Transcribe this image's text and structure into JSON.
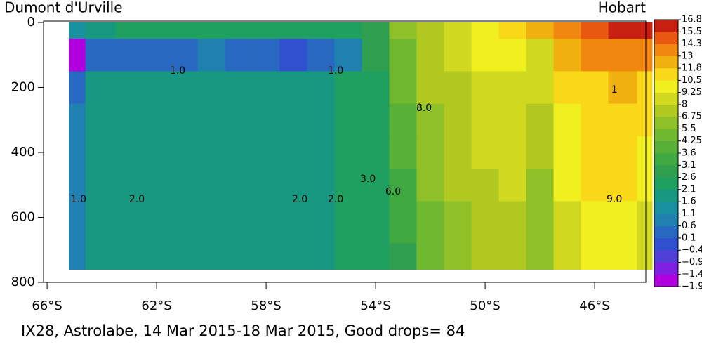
{
  "chart_data": {
    "type": "heatmap",
    "title": "IX28, Astrolabe, 14 Mar 2015-18 Mar 2015, Good drops= 84",
    "left_label": "Dumont d'Urville",
    "right_label": "Hobart",
    "x": [
      -65.2,
      -64,
      -63,
      -62,
      -61,
      -60,
      -59,
      -58,
      -57,
      -56,
      -55,
      -54,
      -53,
      -52,
      -51,
      -50,
      -49,
      -48,
      -47,
      -46,
      -45,
      -43.9
    ],
    "y": [
      0,
      100,
      200,
      300,
      400,
      500,
      600,
      760
    ],
    "z": [
      [
        1.5,
        -1.6,
        0.2,
        0.8,
        0.9,
        1.0,
        1.0,
        1.0
      ],
      [
        2.0,
        0.4,
        1.6,
        1.8,
        1.8,
        1.8,
        1.7,
        1.7
      ],
      [
        2.2,
        0.5,
        1.8,
        1.9,
        1.9,
        1.9,
        1.9,
        1.9
      ],
      [
        2.3,
        0.3,
        1.9,
        2.0,
        2.0,
        2.0,
        2.0,
        2.0
      ],
      [
        2.3,
        0.2,
        1.8,
        1.9,
        1.9,
        1.9,
        1.9,
        1.9
      ],
      [
        2.4,
        0.6,
        1.9,
        1.9,
        1.9,
        1.9,
        1.9,
        1.9
      ],
      [
        2.4,
        0.2,
        1.9,
        1.9,
        1.9,
        1.9,
        1.9,
        1.9
      ],
      [
        2.3,
        0.3,
        1.9,
        1.9,
        1.9,
        1.9,
        1.9,
        1.9
      ],
      [
        2.3,
        0.0,
        2.0,
        2.0,
        2.0,
        2.0,
        2.0,
        2.0
      ],
      [
        2.4,
        0.3,
        2.0,
        2.0,
        2.0,
        2.0,
        2.0,
        2.0
      ],
      [
        2.5,
        0.8,
        2.1,
        2.1,
        2.1,
        2.1,
        2.1,
        2.1
      ],
      [
        3.0,
        2.6,
        2.4,
        2.3,
        2.3,
        2.3,
        2.2,
        2.2
      ],
      [
        5.5,
        5.0,
        4.5,
        4.0,
        3.6,
        3.3,
        3.1,
        3.0
      ],
      [
        7.5,
        7.0,
        6.8,
        6.5,
        6.0,
        5.5,
        5.2,
        4.8
      ],
      [
        8.5,
        8.2,
        7.8,
        7.5,
        7.2,
        7.0,
        6.5,
        6.0
      ],
      [
        10.2,
        9.5,
        9.0,
        8.5,
        8.2,
        7.8,
        7.5,
        7.2
      ],
      [
        11.5,
        9.8,
        9.2,
        8.6,
        8.3,
        8.0,
        7.6,
        7.3
      ],
      [
        12.5,
        9.0,
        8.0,
        7.2,
        6.8,
        6.5,
        6.2,
        6.0
      ],
      [
        14.0,
        11.8,
        10.5,
        10.0,
        9.8,
        9.5,
        9.0,
        8.5
      ],
      [
        15.3,
        13.0,
        11.5,
        11.0,
        10.6,
        10.5,
        10.2,
        10.0
      ],
      [
        15.5,
        13.2,
        11.8,
        11.2,
        10.8,
        10.5,
        10.4,
        10.3
      ],
      [
        16.5,
        13.5,
        11.5,
        10.5,
        10.0,
        9.5,
        9.2,
        9.0
      ]
    ],
    "xlim": [
      -66.13,
      -44.13
    ],
    "xticks": [
      {
        "value": -66,
        "label": "66°S"
      },
      {
        "value": -62,
        "label": "62°S"
      },
      {
        "value": -58,
        "label": "58°S"
      },
      {
        "value": -54,
        "label": "54°S"
      },
      {
        "value": -50,
        "label": "50°S"
      },
      {
        "value": -46,
        "label": "46°S"
      }
    ],
    "ylim": [
      0,
      800
    ],
    "y_inverted": true,
    "yticks": [
      0,
      200,
      400,
      600,
      800
    ],
    "colorbar": {
      "ticks": [
        {
          "value": -1.9,
          "label": "−1.9"
        },
        {
          "value": -1.4,
          "label": "−1.4"
        },
        {
          "value": -0.9,
          "label": "−0.9"
        },
        {
          "value": -0.4,
          "label": "−0.4"
        },
        0.1,
        0.6,
        1.1,
        1.6,
        2.1,
        2.6,
        3.1,
        3.6,
        4.25,
        5.5,
        6.75,
        8,
        9.25,
        10.5,
        11.8,
        13,
        14.3,
        15.5,
        16.8
      ],
      "colors": [
        "#b000e0",
        "#8020e0",
        "#5040d8",
        "#3050d0",
        "#2868c0",
        "#2080b0",
        "#1890a0",
        "#189880",
        "#20a060",
        "#30a050",
        "#40a840",
        "#58b038",
        "#70b830",
        "#90c028",
        "#b0c820",
        "#d0d820",
        "#f0f020",
        "#f8d818",
        "#f0b010",
        "#f08810",
        "#e85810",
        "#c82010"
      ]
    },
    "annotations": [
      {
        "text": "1.0",
        "x": -64.85,
        "y": 545
      },
      {
        "text": "2.0",
        "x": -62.72,
        "y": 545
      },
      {
        "text": "1.0",
        "x": -61.23,
        "y": 149
      },
      {
        "text": "1.0",
        "x": -55.46,
        "y": 149
      },
      {
        "text": "2.0",
        "x": -56.77,
        "y": 545
      },
      {
        "text": "2.0",
        "x": -55.46,
        "y": 545
      },
      {
        "text": "3.0",
        "x": -54.28,
        "y": 482
      },
      {
        "text": "6.0",
        "x": -53.36,
        "y": 521
      },
      {
        "text": "8.0",
        "x": -52.23,
        "y": 264
      },
      {
        "text": "9.0",
        "x": -45.28,
        "y": 545
      },
      {
        "text": "1",
        "x": -45.28,
        "y": 208
      }
    ]
  }
}
